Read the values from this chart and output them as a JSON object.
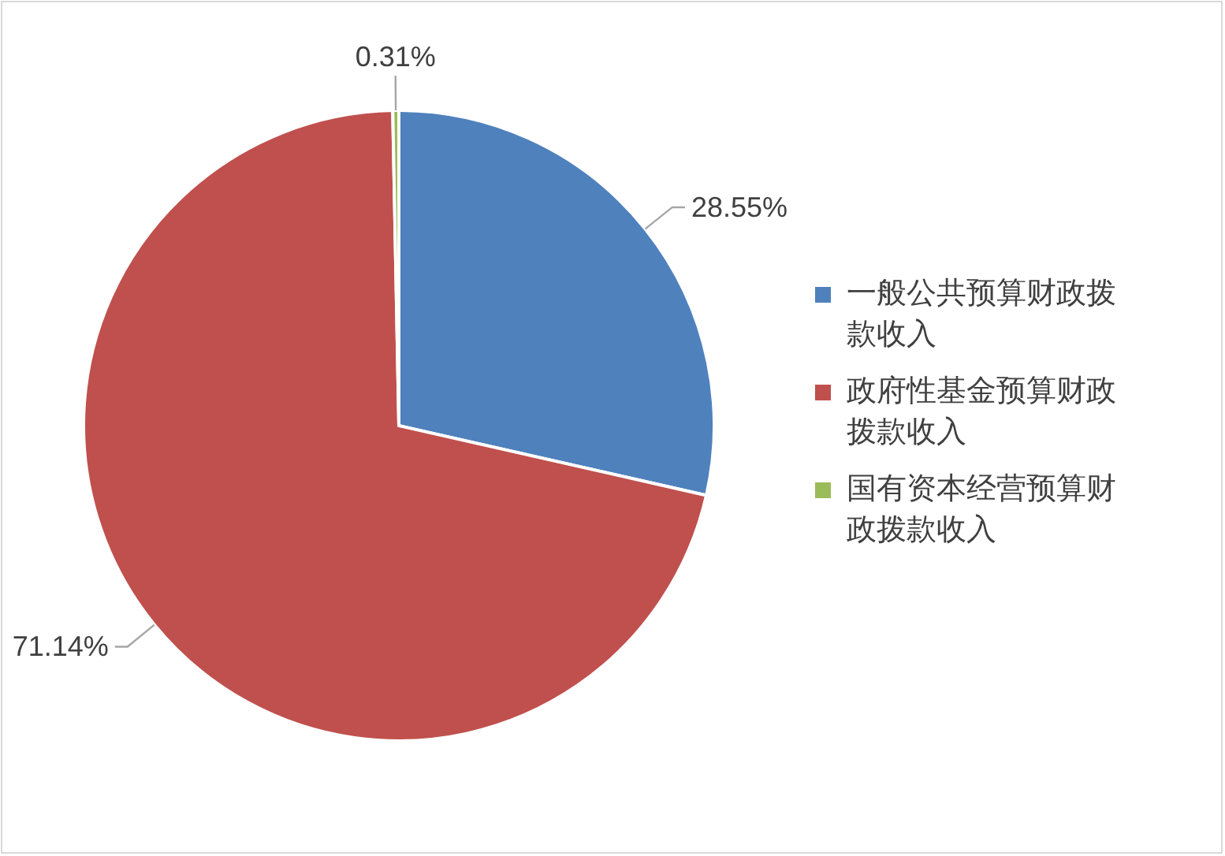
{
  "chart_data": {
    "type": "pie",
    "categories": [
      "一般公共预算财政拨款收入",
      "政府性基金预算财政拨款收入",
      "国有资本经营预算财政拨款收入"
    ],
    "values": [
      28.55,
      71.14,
      0.31
    ],
    "colors": [
      "#4f81bd",
      "#c0504d",
      "#9bbb59"
    ],
    "value_labels": [
      "28.55%",
      "71.14%",
      "0.31%"
    ],
    "legend": "right"
  }
}
